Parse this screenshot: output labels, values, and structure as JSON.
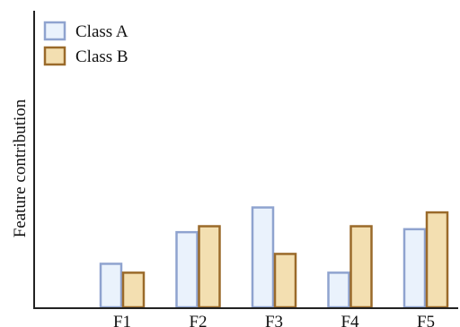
{
  "chart_data": {
    "type": "bar",
    "title": "",
    "xlabel": "",
    "ylabel": "Feature contribution",
    "categories": [
      "F1",
      "F2",
      "F3",
      "F4",
      "F5"
    ],
    "series": [
      {
        "name": "Class A",
        "values": [
          0.44,
          0.76,
          1.01,
          0.35,
          0.79
        ],
        "fill": "#eaf2fc",
        "stroke": "#8fa3cf"
      },
      {
        "name": "Class B",
        "values": [
          0.35,
          0.82,
          0.54,
          0.82,
          0.96
        ],
        "fill": "#f3dfb1",
        "stroke": "#9a6a2a"
      }
    ],
    "ylim": [
      0,
      3.0
    ],
    "grid": false,
    "y_ticks_visible": false,
    "legend_position": "top-left"
  }
}
